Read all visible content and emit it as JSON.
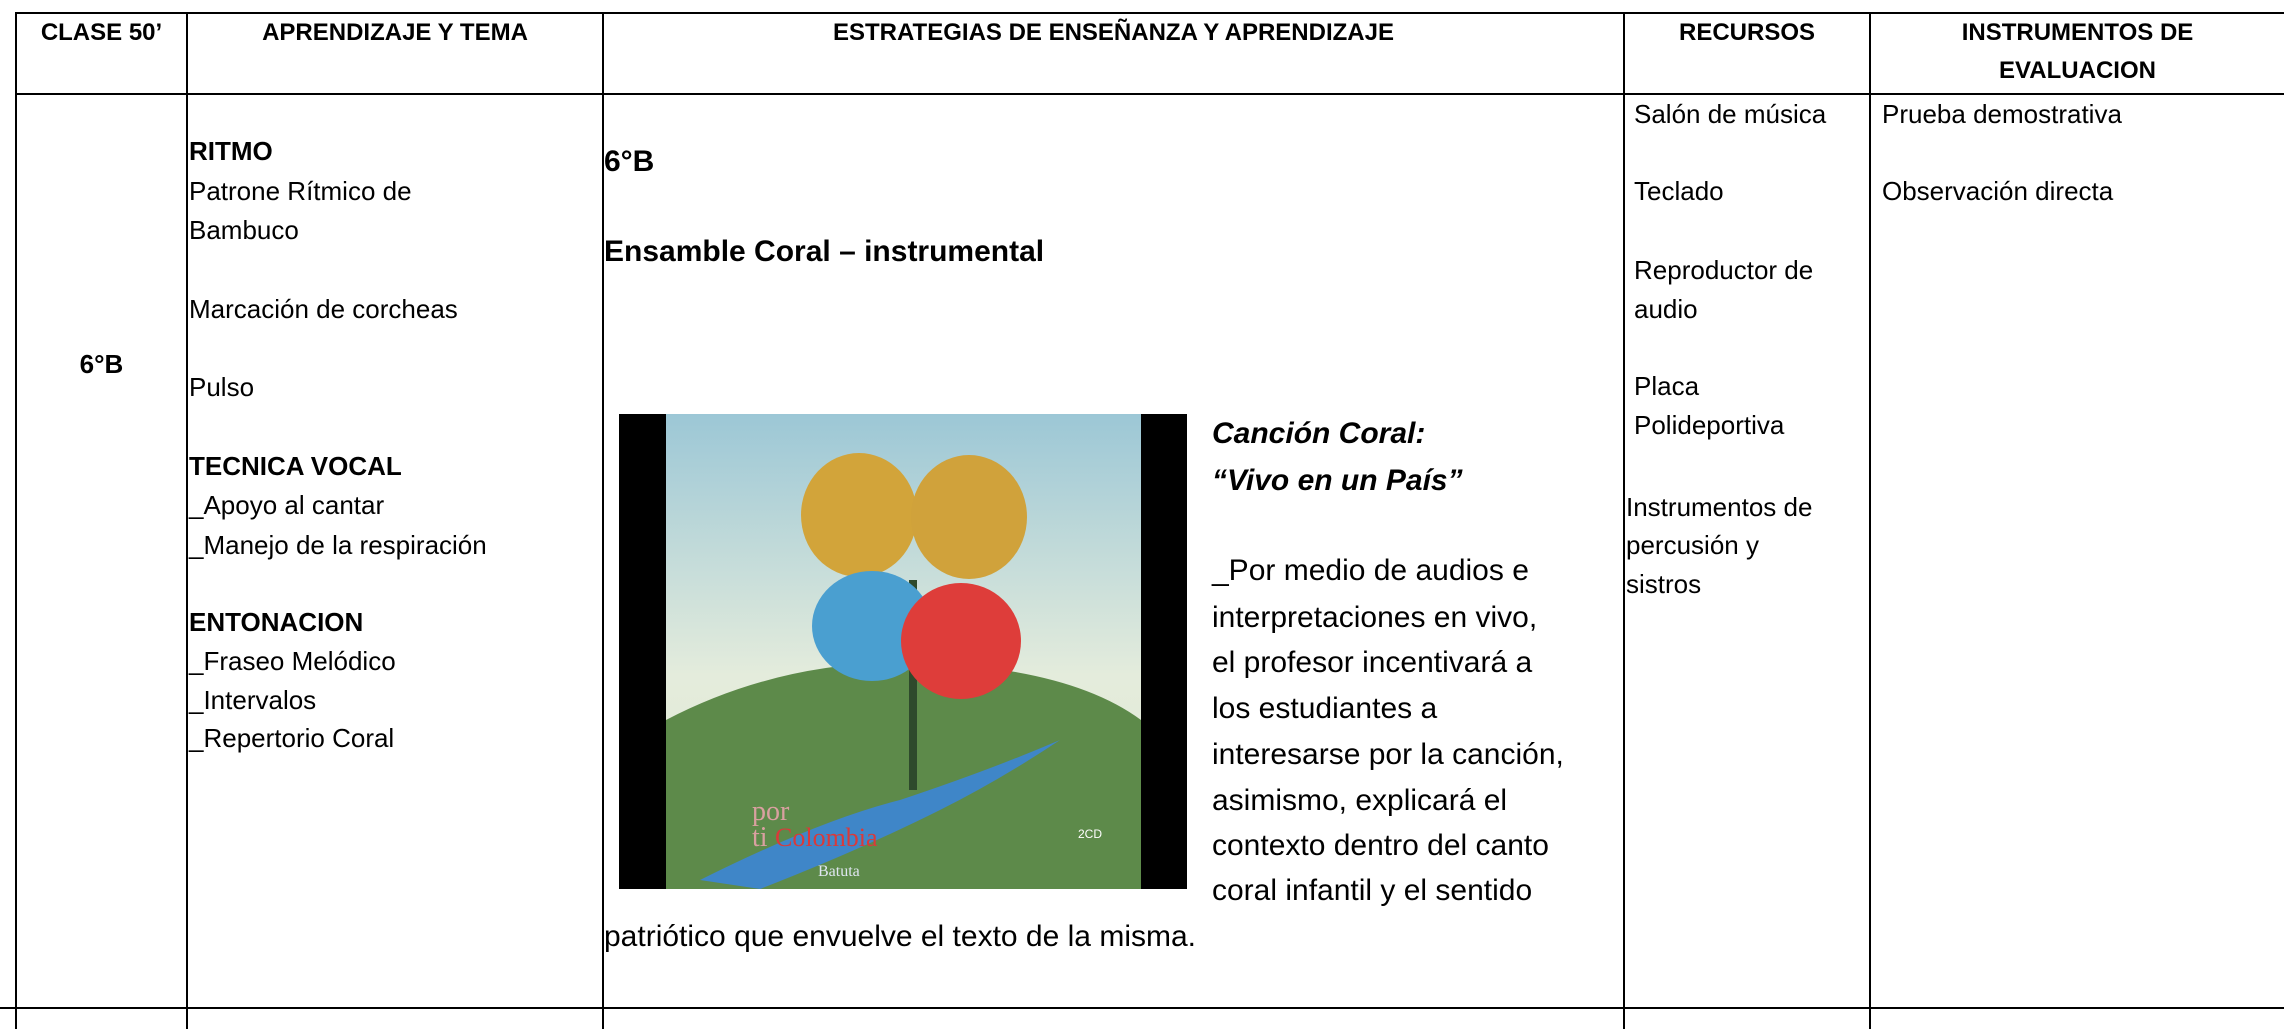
{
  "header": {
    "columns": [
      [
        "CLASE 50’"
      ],
      [
        "APRENDIZAJE Y TEMA"
      ],
      [
        "ESTRATEGIAS DE ENSEÑANZA Y APRENDIZAJE"
      ],
      [
        "RECURSOS"
      ],
      [
        "INSTRUMENTOS DE",
        "EVALUACION"
      ]
    ]
  },
  "row": {
    "clase": "6°B",
    "aprendizaje": [
      {
        "heading": "RITMO",
        "lines": [
          "Patrone Rítmico de",
          "Bambuco",
          "Marcación de corcheas",
          "Pulso"
        ]
      },
      {
        "heading": "TECNICA VOCAL",
        "lines": [
          "_Apoyo al cantar",
          "_Manejo de la respiración"
        ]
      },
      {
        "heading": "ENTONACION",
        "lines": [
          "_Fraseo Melódico",
          "_Intervalos",
          "_Repertorio Coral"
        ]
      }
    ],
    "estrategias": {
      "group": "6°B",
      "title": "Ensamble Coral – instrumental",
      "cover": {
        "texts": [
          "por",
          "ti",
          "Colombia",
          "Batuta",
          "2CD"
        ]
      },
      "song_label": "Canción Coral:",
      "song": "“Vivo en un País”",
      "paragraph": [
        "_Por medio de audios e",
        "interpretaciones en vivo,",
        "el profesor incentivará a",
        "los estudiantes a",
        "interesarse por la canción,",
        "asimismo, explicará el",
        "contexto dentro del canto",
        "coral infantil y el sentido",
        "patriótico que envuelve el texto de la misma."
      ]
    },
    "recursos": [
      [
        "Salón de música"
      ],
      [
        "Teclado"
      ],
      [
        "Reproductor de",
        "audio"
      ],
      [
        "Placa",
        "Polideportiva"
      ],
      [
        "Instrumentos de",
        "percusión y",
        "sistros"
      ]
    ],
    "evaluacion": [
      "Prueba demostrativa",
      "Observación directa"
    ]
  }
}
